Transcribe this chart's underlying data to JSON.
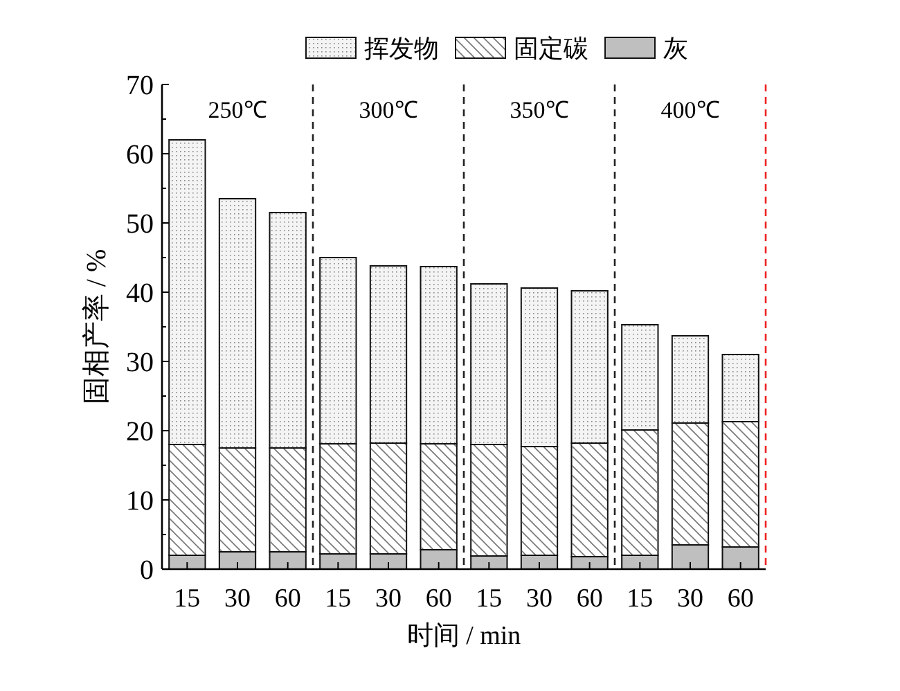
{
  "chart_data": {
    "type": "bar",
    "stacked": true,
    "xlabel": "时间 / min",
    "ylabel": "固相产率 / %",
    "categories": [
      "15",
      "30",
      "60",
      "15",
      "30",
      "60",
      "15",
      "30",
      "60",
      "15",
      "30",
      "60"
    ],
    "series": [
      {
        "name": "灰",
        "color": "#bfbfbf",
        "values": [
          2,
          2.5,
          2.5,
          2.2,
          2.2,
          2.8,
          1.9,
          2,
          1.8,
          2,
          3.5,
          3.2
        ]
      },
      {
        "name": "固定碳",
        "color": "#ffffff",
        "values": [
          16,
          15,
          15,
          15.9,
          16,
          15.3,
          16.1,
          15.7,
          16.4,
          18.1,
          17.6,
          18.1
        ]
      },
      {
        "name": "挥发物",
        "color": "#f4f4f4",
        "values": [
          44,
          36,
          34,
          26.9,
          25.6,
          25.6,
          23.2,
          22.9,
          22,
          15.2,
          12.6,
          9.7
        ]
      }
    ],
    "ylim": [
      0,
      70
    ],
    "yticks": [
      0,
      10,
      20,
      30,
      40,
      50,
      60,
      70
    ],
    "legend": "top",
    "annotations": [
      "250℃",
      "300℃",
      "350℃",
      "400℃"
    ]
  }
}
